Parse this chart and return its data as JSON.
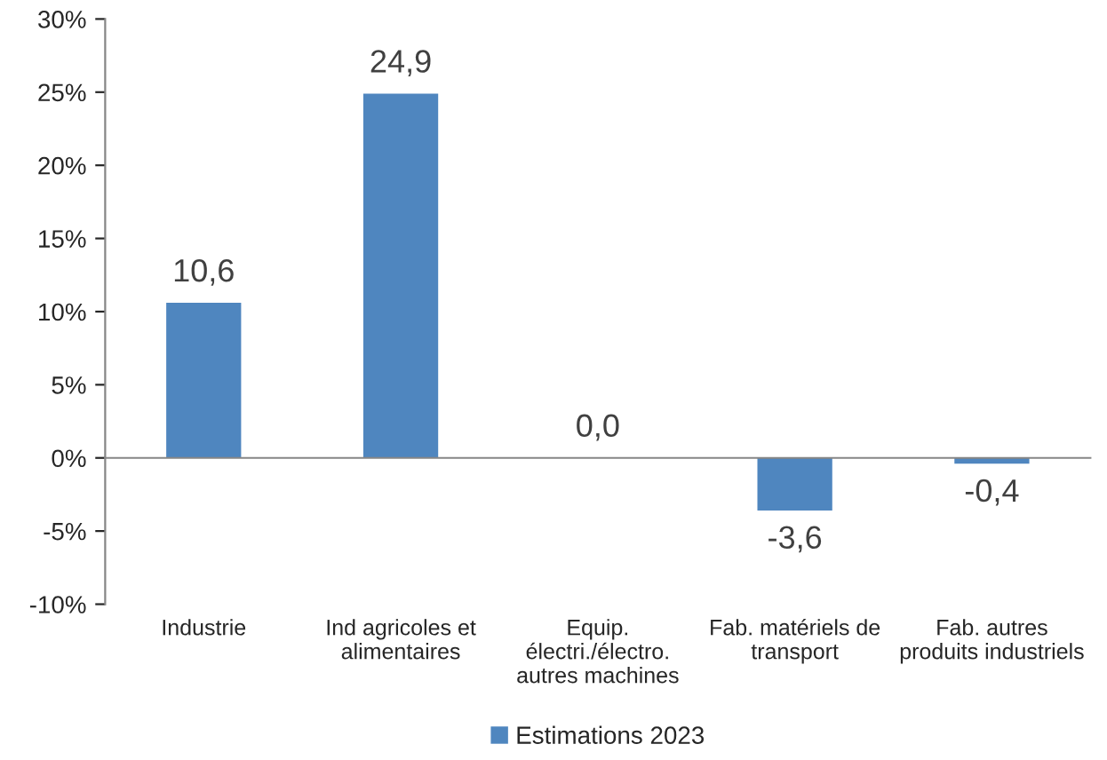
{
  "chart_data": {
    "type": "bar",
    "categories": [
      "Industrie",
      "Ind agricoles et\nalimentaires",
      "Equip.\nélectri./électro.\nautres machines",
      "Fab. matériels de\ntransport",
      "Fab. autres\nproduits industriels"
    ],
    "series": [
      {
        "name": "Estimations 2023",
        "color": "#4f86bf",
        "values": [
          10.6,
          24.9,
          0.0,
          -3.6,
          -0.4
        ],
        "value_labels": [
          "10,6",
          "24,9",
          "0,0",
          "-3,6",
          "-0,4"
        ]
      }
    ],
    "ylim": [
      -10,
      30
    ],
    "yticks": [
      {
        "value": -10,
        "label": "-10%"
      },
      {
        "value": -5,
        "label": "-5%"
      },
      {
        "value": 0,
        "label": "0%"
      },
      {
        "value": 5,
        "label": "5%"
      },
      {
        "value": 10,
        "label": "10%"
      },
      {
        "value": 15,
        "label": "15%"
      },
      {
        "value": 20,
        "label": "20%"
      },
      {
        "value": 25,
        "label": "25%"
      },
      {
        "value": 30,
        "label": "30%"
      }
    ],
    "legend": "bottom"
  }
}
